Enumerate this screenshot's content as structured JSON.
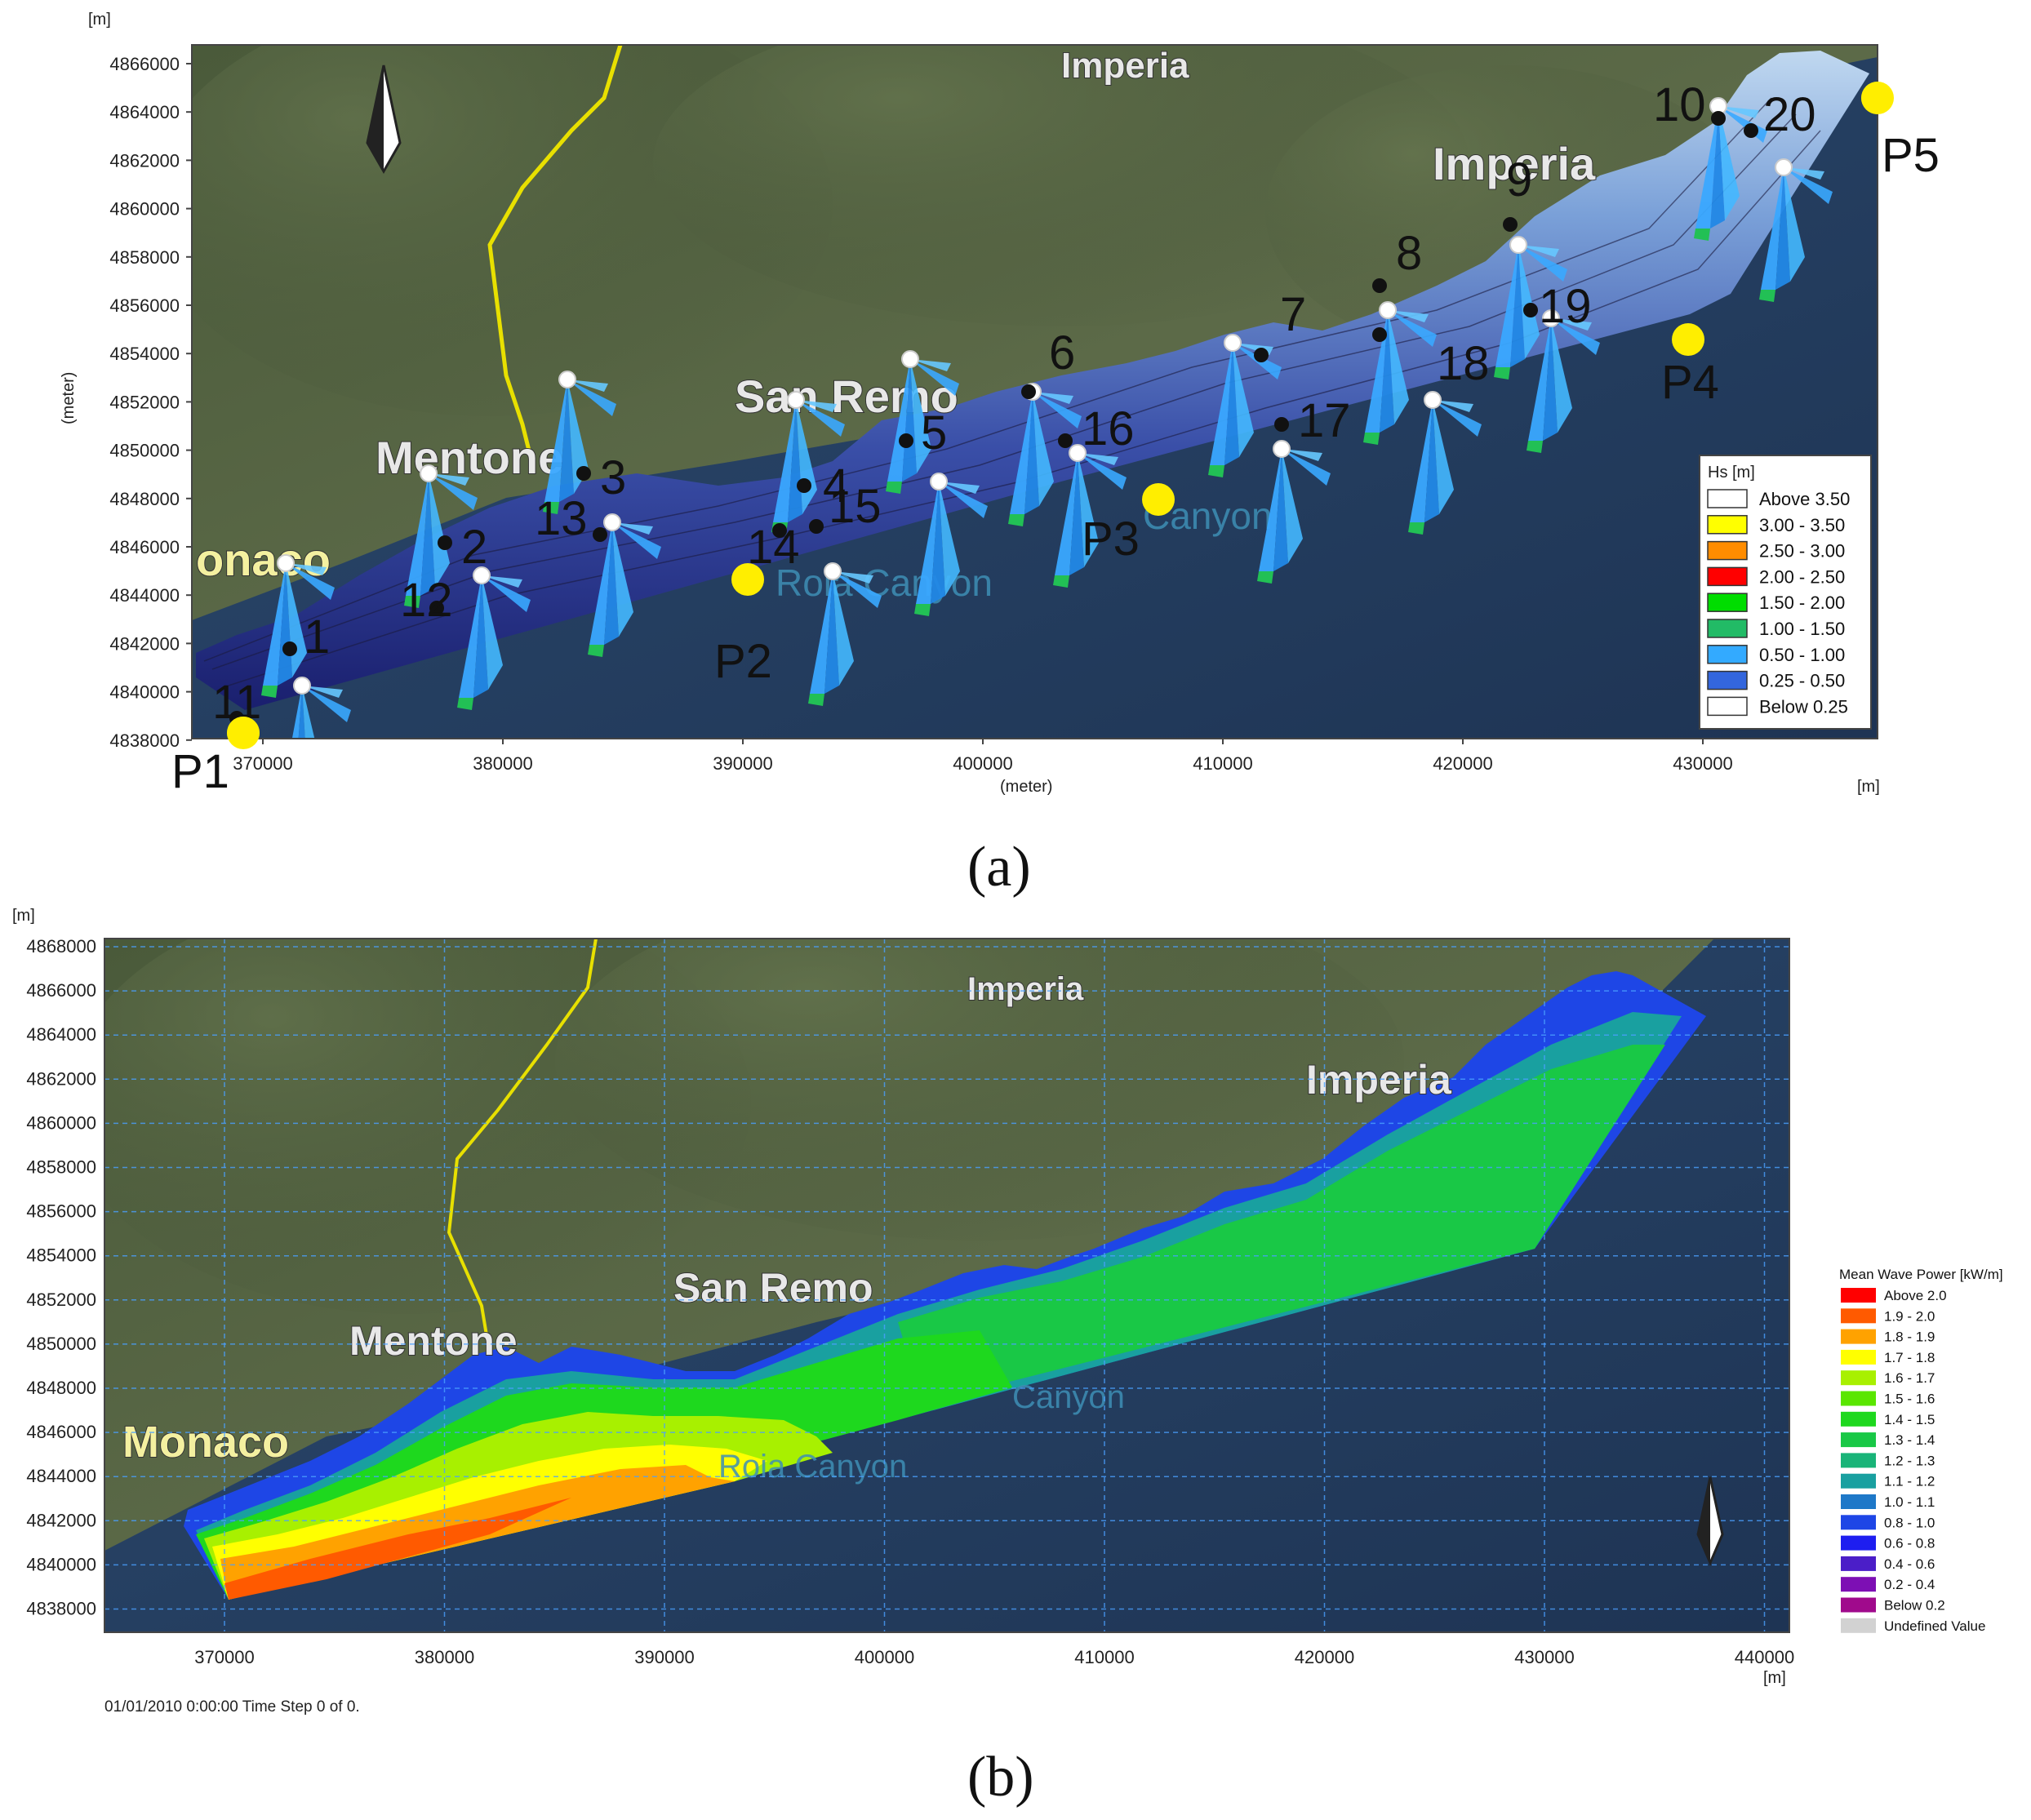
{
  "panel_a": {
    "unit_top": "[m]",
    "unit_right": "[m]",
    "y_label": "(meter)",
    "x_label": "(meter)",
    "y_ticks": [
      "4866000",
      "4864000",
      "4862000",
      "4860000",
      "4858000",
      "4856000",
      "4854000",
      "4852000",
      "4850000",
      "4848000",
      "4846000",
      "4844000",
      "4842000",
      "4840000",
      "4838000"
    ],
    "x_ticks": [
      "370000",
      "380000",
      "390000",
      "400000",
      "410000",
      "420000",
      "430000"
    ],
    "places": {
      "imperia_top": "Imperia",
      "imperia": "Imperia",
      "san_remo": "San Remo",
      "mentone": "Mentone",
      "monaco": "onaco",
      "canyon_roia": "Roia Canyon",
      "canyon_other": "Canyon"
    },
    "points": [
      "1",
      "2",
      "3",
      "4",
      "5",
      "6",
      "7",
      "8",
      "9",
      "10",
      "11",
      "12",
      "13",
      "14",
      "15",
      "16",
      "17",
      "18",
      "19",
      "20"
    ],
    "p_points": [
      "P1",
      "P2",
      "P3",
      "P4",
      "P5"
    ],
    "legend": {
      "title": "Hs [m]",
      "items": [
        {
          "label": "Above 3.50",
          "color": "#ffffff"
        },
        {
          "label": "3.00 - 3.50",
          "color": "#ffff00"
        },
        {
          "label": "2.50 - 3.00",
          "color": "#ff8c00"
        },
        {
          "label": "2.00 - 2.50",
          "color": "#ff0000"
        },
        {
          "label": "1.50 - 2.00",
          "color": "#00dd00"
        },
        {
          "label": "1.00 - 1.50",
          "color": "#22bb66"
        },
        {
          "label": "0.50 - 1.00",
          "color": "#33aaff"
        },
        {
          "label": "0.25 - 0.50",
          "color": "#3366dd"
        },
        {
          "label": "Below 0.25",
          "color": "#ffffff"
        }
      ]
    },
    "caption": "(a)"
  },
  "panel_b": {
    "unit_top": "[m]",
    "unit_right": "[m]",
    "y_ticks": [
      "4868000",
      "4866000",
      "4864000",
      "4862000",
      "4860000",
      "4858000",
      "4856000",
      "4854000",
      "4852000",
      "4850000",
      "4848000",
      "4846000",
      "4844000",
      "4842000",
      "4840000",
      "4838000"
    ],
    "x_ticks": [
      "370000",
      "380000",
      "390000",
      "400000",
      "410000",
      "420000",
      "430000",
      "440000"
    ],
    "places": {
      "imperia_top": "Imperia",
      "imperia": "Imperia",
      "san_remo": "San Remo",
      "mentone": "Mentone",
      "monaco": "Monaco",
      "canyon_roia": "Roia Canyon",
      "canyon_other": "Canyon"
    },
    "status": "01/01/2010 0:00:00  Time Step 0 of 0.",
    "legend": {
      "title": "Mean Wave Power [kW/m]",
      "items": [
        {
          "label": "Above 2.0",
          "color": "#ff0000"
        },
        {
          "label": "1.9 - 2.0",
          "color": "#ff5a00"
        },
        {
          "label": "1.8 - 1.9",
          "color": "#ffa200"
        },
        {
          "label": "1.7 - 1.8",
          "color": "#ffff00"
        },
        {
          "label": "1.6 - 1.7",
          "color": "#a8f000"
        },
        {
          "label": "1.5 - 1.6",
          "color": "#5ae600"
        },
        {
          "label": "1.4 - 1.5",
          "color": "#1ed81e"
        },
        {
          "label": "1.3 - 1.4",
          "color": "#19c846"
        },
        {
          "label": "1.2 - 1.3",
          "color": "#19b478"
        },
        {
          "label": "1.1 - 1.2",
          "color": "#19a0a0"
        },
        {
          "label": "1.0 - 1.1",
          "color": "#1e78c8"
        },
        {
          "label": "0.8 - 1.0",
          "color": "#1e46e6"
        },
        {
          "label": "0.6 - 0.8",
          "color": "#1e1ef0"
        },
        {
          "label": "0.4 - 0.6",
          "color": "#4b1ec8"
        },
        {
          "label": "0.2 - 0.4",
          "color": "#7d0fb4"
        },
        {
          "label": "Below 0.2",
          "color": "#a00a8c"
        },
        {
          "label": "Undefined Value",
          "color": "#d2d2d2"
        }
      ]
    },
    "caption": "(b)"
  }
}
